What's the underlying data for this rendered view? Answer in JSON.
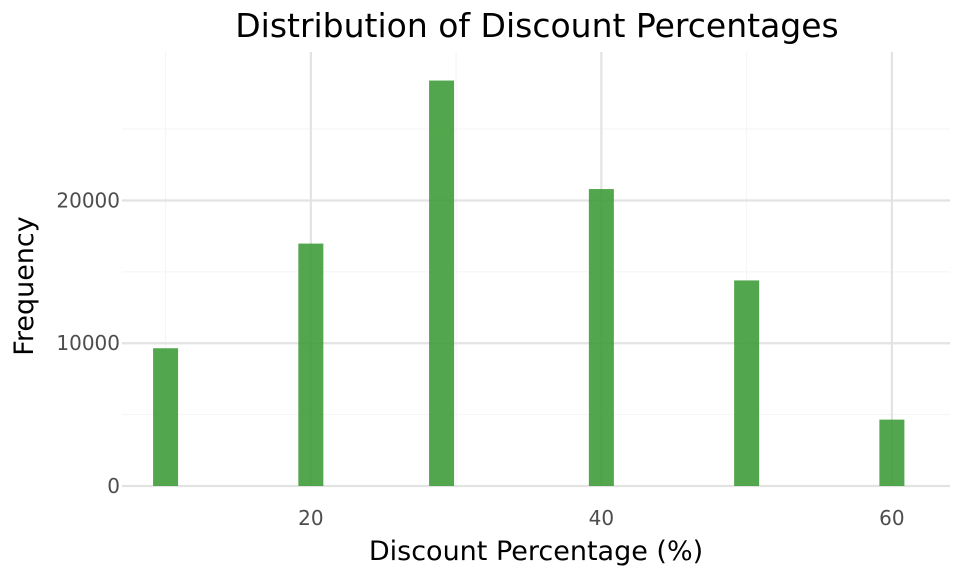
{
  "chart_data": {
    "type": "bar",
    "title": "Distribution of Discount Percentages",
    "xlabel": "Discount Percentage (%)",
    "ylabel": "Frequency",
    "x": [
      10,
      20,
      29,
      40,
      50,
      60
    ],
    "values": [
      9650,
      16980,
      28400,
      20800,
      14400,
      4650
    ],
    "xlim": [
      7,
      64
    ],
    "ylim": [
      0,
      30400
    ],
    "x_ticks": [
      20,
      40,
      60
    ],
    "x_tick_labels": [
      "20",
      "40",
      "60"
    ],
    "y_ticks": [
      0,
      10000,
      20000
    ],
    "y_tick_labels": [
      "0",
      "10000",
      "20000"
    ],
    "grid": true,
    "bar_color": "#3a9a34",
    "background": "#ffffff"
  }
}
